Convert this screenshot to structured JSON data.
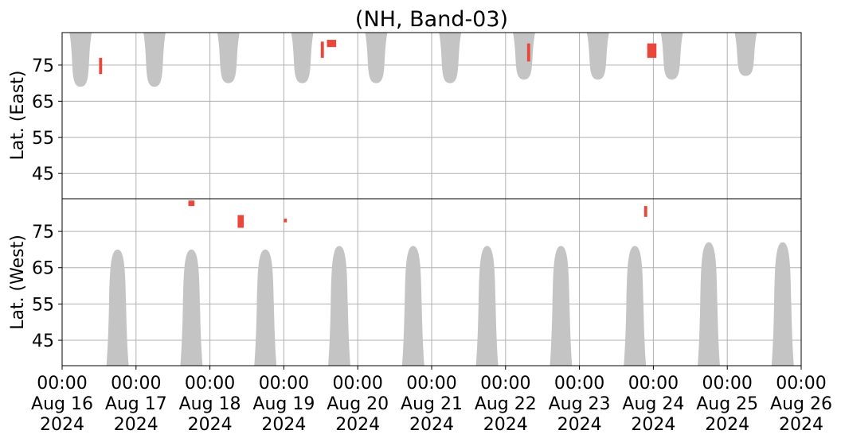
{
  "chart_data": {
    "type": "heatmap",
    "title": "(NH, Band-03)",
    "colors": {
      "shadow": "#c4c4c4",
      "event": "#e8473b",
      "grid": "#b0b0b0",
      "axis": "#000000"
    },
    "xaxis": {
      "start": "2024-08-16 00:00",
      "end": "2024-08-26 00:00",
      "ticks": [
        {
          "date": "2024-08-16",
          "time": "00:00",
          "day": "Aug 16",
          "year": "2024"
        },
        {
          "date": "2024-08-17",
          "time": "00:00",
          "day": "Aug 17",
          "year": "2024"
        },
        {
          "date": "2024-08-18",
          "time": "00:00",
          "day": "Aug 18",
          "year": "2024"
        },
        {
          "date": "2024-08-19",
          "time": "00:00",
          "day": "Aug 19",
          "year": "2024"
        },
        {
          "date": "2024-08-20",
          "time": "00:00",
          "day": "Aug 20",
          "year": "2024"
        },
        {
          "date": "2024-08-21",
          "time": "00:00",
          "day": "Aug 21",
          "year": "2024"
        },
        {
          "date": "2024-08-22",
          "time": "00:00",
          "day": "Aug 22",
          "year": "2024"
        },
        {
          "date": "2024-08-23",
          "time": "00:00",
          "day": "Aug 23",
          "year": "2024"
        },
        {
          "date": "2024-08-24",
          "time": "00:00",
          "day": "Aug 24",
          "year": "2024"
        },
        {
          "date": "2024-08-25",
          "time": "00:00",
          "day": "Aug 25",
          "year": "2024"
        },
        {
          "date": "2024-08-26",
          "time": "00:00",
          "day": "Aug 26",
          "year": "2024"
        }
      ]
    },
    "panels": [
      {
        "name": "east",
        "ylabel": "Lat. (East)",
        "ylim": [
          38,
          84
        ],
        "yticks": [
          45,
          55,
          65,
          75
        ],
        "shadow_lobes": [
          {
            "center": "2024-08-16 06:00",
            "half_width_hours": 3.6,
            "tip_lat": 69
          },
          {
            "center": "2024-08-17 06:00",
            "half_width_hours": 3.6,
            "tip_lat": 69
          },
          {
            "center": "2024-08-18 06:00",
            "half_width_hours": 3.6,
            "tip_lat": 70
          },
          {
            "center": "2024-08-19 06:00",
            "half_width_hours": 3.6,
            "tip_lat": 70
          },
          {
            "center": "2024-08-20 06:00",
            "half_width_hours": 3.6,
            "tip_lat": 70
          },
          {
            "center": "2024-08-21 06:00",
            "half_width_hours": 3.6,
            "tip_lat": 70
          },
          {
            "center": "2024-08-22 06:00",
            "half_width_hours": 3.6,
            "tip_lat": 71
          },
          {
            "center": "2024-08-23 06:00",
            "half_width_hours": 3.6,
            "tip_lat": 71
          },
          {
            "center": "2024-08-24 06:00",
            "half_width_hours": 3.6,
            "tip_lat": 71
          },
          {
            "center": "2024-08-25 06:00",
            "half_width_hours": 3.6,
            "tip_lat": 72
          }
        ],
        "events": [
          {
            "start": "2024-08-16 12:00",
            "end": "2024-08-16 13:00",
            "lat_min": 72.5,
            "lat_max": 77
          },
          {
            "start": "2024-08-19 12:00",
            "end": "2024-08-19 13:00",
            "lat_min": 77,
            "lat_max": 81.5
          },
          {
            "start": "2024-08-19 14:00",
            "end": "2024-08-19 17:00",
            "lat_min": 80,
            "lat_max": 82
          },
          {
            "start": "2024-08-22 07:00",
            "end": "2024-08-22 08:00",
            "lat_min": 76,
            "lat_max": 81
          },
          {
            "start": "2024-08-23 22:00",
            "end": "2024-08-24 01:00",
            "lat_min": 77,
            "lat_max": 81
          }
        ]
      },
      {
        "name": "west",
        "ylabel": "Lat. (West)",
        "ylim": [
          38,
          84
        ],
        "yticks": [
          75,
          65,
          55,
          45
        ],
        "shadow_lobes": [
          {
            "center": "2024-08-16 18:00",
            "half_width_hours": 3.6,
            "tip_lat": 70
          },
          {
            "center": "2024-08-17 18:00",
            "half_width_hours": 3.6,
            "tip_lat": 70
          },
          {
            "center": "2024-08-18 18:00",
            "half_width_hours": 3.6,
            "tip_lat": 70
          },
          {
            "center": "2024-08-19 18:00",
            "half_width_hours": 3.6,
            "tip_lat": 71
          },
          {
            "center": "2024-08-20 18:00",
            "half_width_hours": 3.6,
            "tip_lat": 71
          },
          {
            "center": "2024-08-21 18:00",
            "half_width_hours": 3.6,
            "tip_lat": 71
          },
          {
            "center": "2024-08-22 18:00",
            "half_width_hours": 3.6,
            "tip_lat": 71
          },
          {
            "center": "2024-08-23 18:00",
            "half_width_hours": 3.6,
            "tip_lat": 71
          },
          {
            "center": "2024-08-24 18:00",
            "half_width_hours": 3.6,
            "tip_lat": 72
          },
          {
            "center": "2024-08-25 18:00",
            "half_width_hours": 3.6,
            "tip_lat": 72
          }
        ],
        "events": [
          {
            "start": "2024-08-17 17:00",
            "end": "2024-08-17 19:00",
            "lat_min": 82,
            "lat_max": 83.5
          },
          {
            "start": "2024-08-18 09:00",
            "end": "2024-08-18 11:00",
            "lat_min": 76,
            "lat_max": 79.5
          },
          {
            "start": "2024-08-19 00:00",
            "end": "2024-08-19 01:00",
            "lat_min": 77.5,
            "lat_max": 78.5
          },
          {
            "start": "2024-08-23 21:00",
            "end": "2024-08-23 22:00",
            "lat_min": 79,
            "lat_max": 82
          }
        ]
      }
    ]
  }
}
